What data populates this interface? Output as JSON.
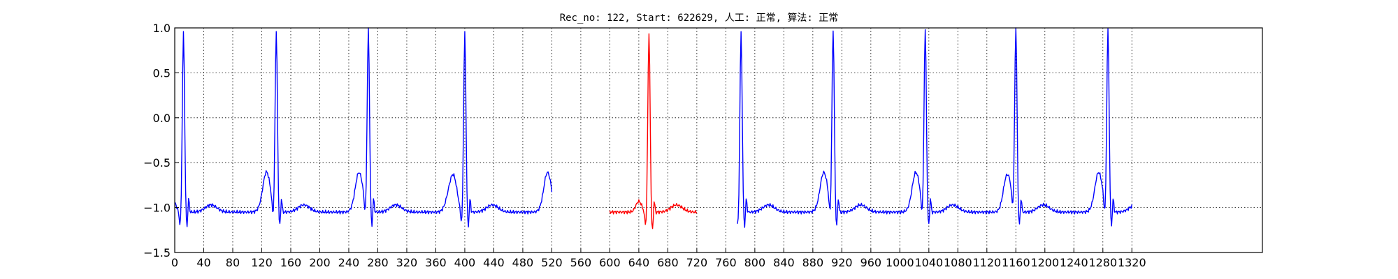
{
  "chart_data": {
    "type": "line",
    "title": "Rec_no: 122, Start: 622629, 人工: 正常, 算法: 正常",
    "xlabel": "",
    "ylabel": "",
    "xlim": [
      0,
      1500
    ],
    "ylim": [
      -1.5,
      1.0
    ],
    "grid": true,
    "xticks": [
      0,
      40,
      80,
      120,
      160,
      200,
      240,
      280,
      320,
      360,
      400,
      440,
      480,
      520,
      560,
      600,
      640,
      680,
      720,
      760,
      800,
      840,
      880,
      920,
      960,
      1000,
      1040,
      1080,
      1120,
      1160,
      1200,
      1240,
      1280,
      1320
    ],
    "xtick_labels": [
      "0",
      "40",
      "80",
      "120",
      "160",
      "200",
      "240",
      "280",
      "320",
      "360",
      "400",
      "440",
      "480",
      "520",
      "560",
      "600",
      "640",
      "680",
      "720",
      "760",
      "800",
      "840",
      "880",
      "920",
      "960",
      "1000",
      "1040",
      "1080",
      "1120",
      "1160",
      "1200",
      "1240",
      "1280",
      "1320"
    ],
    "yticks": [
      -1.5,
      -1.0,
      -0.5,
      0.0,
      0.5,
      1.0
    ],
    "ytick_labels": [
      "−1.5",
      "−1.0",
      "−0.5",
      "0.0",
      "0.5",
      "1.0"
    ],
    "series": [
      {
        "color": "#0000ff",
        "segments": [
          {
            "x": [
              0,
              520
            ],
            "beats_at": [
              12,
              140,
              267,
              400,
              527
            ]
          },
          {
            "x": [
              776,
              1320
            ],
            "beats_at": [
              781,
              908,
              1035,
              1160,
              1287
            ]
          }
        ],
        "baseline": -1.05,
        "r_peak": 0.8,
        "s_trough": -1.25,
        "t_wave_peak": -0.72
      },
      {
        "color": "#ff0000",
        "segments": [
          {
            "x": [
              600,
              720
            ],
            "beats_at": [
              654
            ]
          }
        ],
        "baseline": -1.05,
        "r_peak": 0.8,
        "s_trough": -1.3,
        "t_wave_peak": -0.78
      }
    ]
  }
}
